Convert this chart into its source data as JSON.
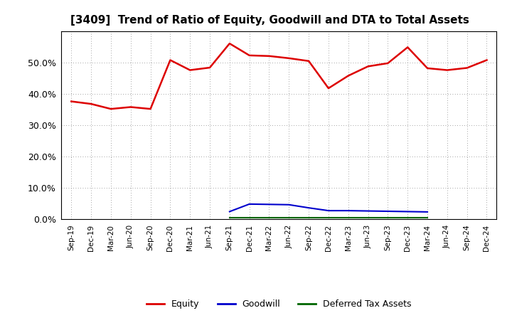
{
  "title": "[3409]  Trend of Ratio of Equity, Goodwill and DTA to Total Assets",
  "x_labels": [
    "Sep-19",
    "Dec-19",
    "Mar-20",
    "Jun-20",
    "Sep-20",
    "Dec-20",
    "Mar-21",
    "Jun-21",
    "Sep-21",
    "Dec-21",
    "Mar-22",
    "Jun-22",
    "Sep-22",
    "Dec-22",
    "Mar-23",
    "Jun-23",
    "Sep-23",
    "Dec-23",
    "Mar-24",
    "Jun-24",
    "Sep-24",
    "Dec-24"
  ],
  "equity": [
    0.376,
    0.368,
    0.352,
    0.358,
    0.352,
    0.508,
    0.476,
    0.484,
    0.561,
    0.523,
    0.521,
    0.514,
    0.505,
    0.418,
    0.458,
    0.488,
    0.498,
    0.549,
    0.482,
    0.476,
    0.483,
    0.508
  ],
  "goodwill": [
    null,
    null,
    null,
    null,
    null,
    null,
    null,
    null,
    0.024,
    0.048,
    0.047,
    0.046,
    0.036,
    0.027,
    0.027,
    0.026,
    0.025,
    0.024,
    0.023,
    null,
    null,
    null
  ],
  "dta": [
    null,
    null,
    null,
    null,
    null,
    null,
    null,
    null,
    0.005,
    0.005,
    0.005,
    0.005,
    0.005,
    0.005,
    0.005,
    0.005,
    0.005,
    0.005,
    0.005,
    null,
    null,
    null
  ],
  "equity_color": "#DD0000",
  "goodwill_color": "#0000CC",
  "dta_color": "#006600",
  "background_color": "#FFFFFF",
  "plot_bg_color": "#FFFFFF",
  "ylim": [
    0.0,
    0.6
  ],
  "yticks": [
    0.0,
    0.1,
    0.2,
    0.3,
    0.4,
    0.5
  ],
  "legend_labels": [
    "Equity",
    "Goodwill",
    "Deferred Tax Assets"
  ]
}
